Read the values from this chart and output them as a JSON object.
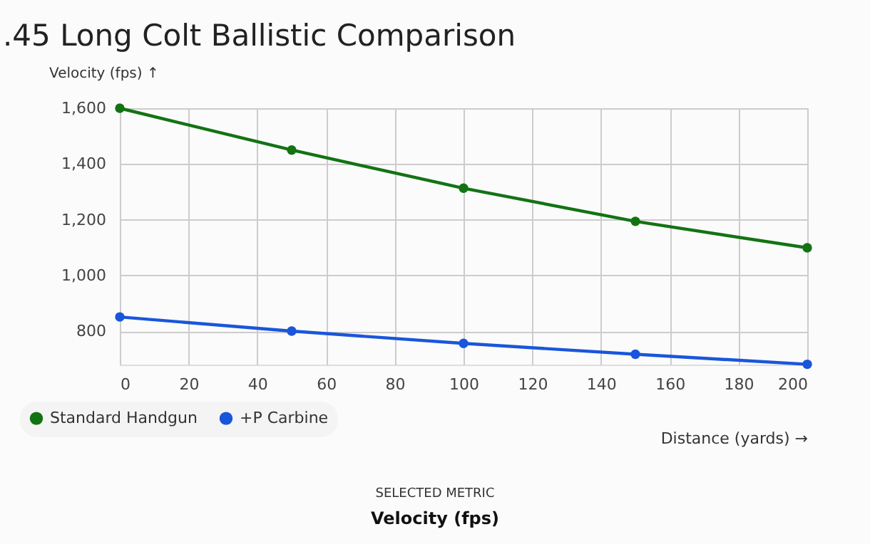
{
  "chart_data": {
    "type": "line",
    "title": ".45 Long Colt Ballistic Comparison",
    "xlabel": "Distance (yards) →",
    "ylabel": "Velocity (fps) ↑",
    "x": [
      0,
      50,
      100,
      150,
      200
    ],
    "series": [
      {
        "name": "Standard Handgun",
        "color": "#137313",
        "values": [
          1600,
          1450,
          1313,
          1194,
          1099
        ]
      },
      {
        "name": "+P Carbine",
        "color": "#1a56db",
        "values": [
          851,
          800,
          756,
          717,
          681
        ]
      }
    ],
    "xlim": [
      0,
      200
    ],
    "xticks": [
      0,
      20,
      40,
      60,
      80,
      100,
      120,
      140,
      160,
      180,
      200
    ],
    "ylim": [
      680,
      1600
    ],
    "yticks": [
      {
        "value": 800,
        "label": "800"
      },
      {
        "value": 1000,
        "label": "1,000"
      },
      {
        "value": 1200,
        "label": "1,200"
      },
      {
        "value": 1400,
        "label": "1,400"
      },
      {
        "value": 1600,
        "label": "1,600"
      }
    ],
    "grid": true,
    "legend": "bottom left",
    "marker": "circle",
    "line_style": "solid",
    "annotations": [
      "SELECTED METRIC",
      "Velocity (fps)"
    ]
  }
}
